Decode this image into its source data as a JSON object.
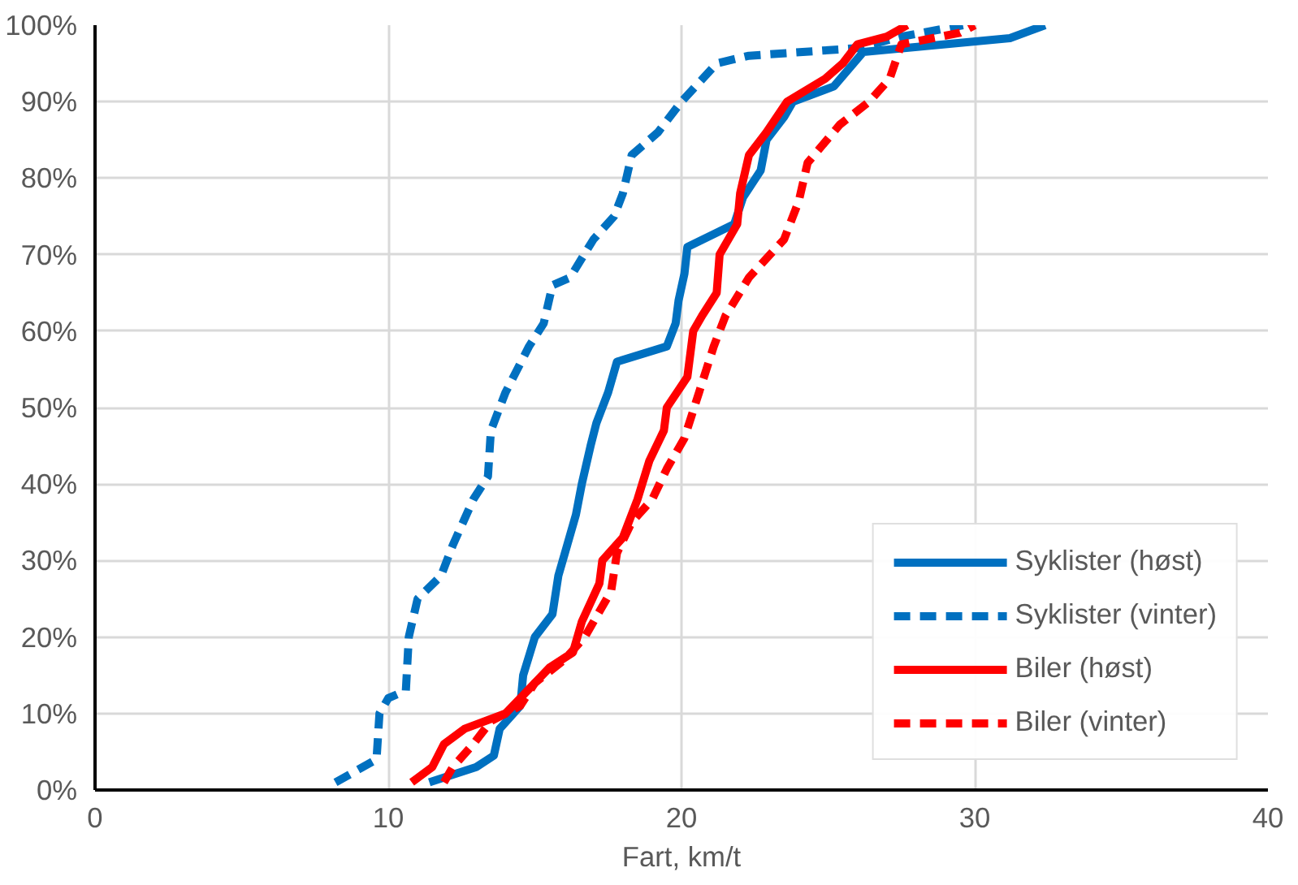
{
  "chart_data": {
    "type": "line",
    "xlabel": "Fart, km/t",
    "xlim": [
      0,
      40
    ],
    "xticks": [
      0,
      10,
      20,
      30,
      40
    ],
    "ylim": [
      0,
      100
    ],
    "yticks": [
      {
        "value": 0,
        "label": "0%"
      },
      {
        "value": 10,
        "label": "10%"
      },
      {
        "value": 20,
        "label": "20%"
      },
      {
        "value": 30,
        "label": "30%"
      },
      {
        "value": 40,
        "label": "40%"
      },
      {
        "value": 50,
        "label": "50%"
      },
      {
        "value": 60,
        "label": "60%"
      },
      {
        "value": 70,
        "label": "70%"
      },
      {
        "value": 80,
        "label": "80%"
      },
      {
        "value": 90,
        "label": "90%"
      },
      {
        "value": 100,
        "label": "100%"
      }
    ],
    "grid": true,
    "legend": "bottom right",
    "marker": "none",
    "series": [
      {
        "name": "Syklister (høst)",
        "color": "#0070c0",
        "line_style": "solid",
        "x": [
          11.4,
          13.0,
          13.6,
          13.8,
          14.5,
          14.6,
          15.0,
          15.6,
          15.8,
          16.1,
          16.4,
          16.6,
          16.9,
          17.1,
          17.5,
          17.8,
          19.5,
          19.8,
          19.9,
          20.1,
          20.2,
          21.8,
          22.1,
          22.7,
          22.9,
          23.5,
          23.8,
          25.2,
          26.2,
          31.2,
          32.4
        ],
        "values": [
          1,
          3,
          4.5,
          8,
          11,
          15,
          20,
          23,
          28,
          32,
          36,
          40,
          45,
          48,
          52,
          56,
          58,
          61,
          64,
          67.5,
          71,
          74,
          77.5,
          81,
          85,
          88,
          90,
          92,
          96.5,
          98.3,
          100
        ]
      },
      {
        "name": "Syklister (vinter)",
        "color": "#0070c0",
        "line_style": "dashed",
        "x": [
          8.2,
          9.6,
          9.7,
          10.0,
          10.6,
          10.7,
          11.0,
          11.8,
          12.2,
          12.9,
          13.4,
          13.5,
          14.0,
          14.8,
          15.3,
          15.6,
          16.2,
          17.0,
          17.7,
          18.0,
          18.3,
          19.2,
          20.0,
          21.2,
          22.3,
          26.0,
          27.5,
          29.6
        ],
        "values": [
          1,
          4,
          10,
          12,
          13,
          20,
          25,
          28,
          32,
          38,
          41,
          47,
          52,
          58,
          61,
          66,
          67,
          72,
          75,
          78,
          83,
          86,
          90,
          95,
          96,
          97,
          98.5,
          100
        ]
      },
      {
        "name": "Biler (høst)",
        "color": "#ff0000",
        "line_style": "solid",
        "x": [
          10.8,
          11.5,
          11.9,
          12.6,
          14.0,
          14.5,
          15.5,
          16.3,
          16.6,
          17.2,
          17.3,
          18.0,
          18.5,
          18.9,
          19.4,
          19.5,
          20.2,
          20.4,
          20.7,
          21.2,
          21.3,
          21.9,
          22.0,
          22.3,
          22.9,
          23.6,
          24.9,
          25.5,
          26.0,
          27.0,
          27.7
        ],
        "values": [
          1,
          3,
          6,
          8,
          10,
          12,
          16,
          18,
          22,
          27,
          30,
          33,
          38,
          43,
          47,
          50,
          54,
          60,
          62,
          65,
          70,
          74,
          78,
          83,
          86,
          90,
          93,
          95,
          97.5,
          98.5,
          100
        ]
      },
      {
        "name": "Biler (vinter)",
        "color": "#ff0000",
        "line_style": "dashed",
        "x": [
          11.9,
          12.2,
          12.9,
          13.5,
          14.5,
          15.0,
          16.0,
          16.7,
          17.6,
          17.8,
          18.3,
          19.0,
          19.5,
          20.1,
          20.6,
          21.1,
          21.5,
          22.3,
          23.5,
          24.0,
          24.3,
          25.4,
          26.4,
          27.1,
          27.5,
          29.5,
          30.0
        ],
        "values": [
          1,
          3,
          6,
          9,
          11,
          14,
          17,
          20,
          26,
          31,
          35,
          38,
          42,
          46,
          52,
          58,
          62,
          67,
          72,
          77,
          82,
          87,
          90,
          93,
          97.5,
          99,
          100
        ]
      }
    ]
  }
}
